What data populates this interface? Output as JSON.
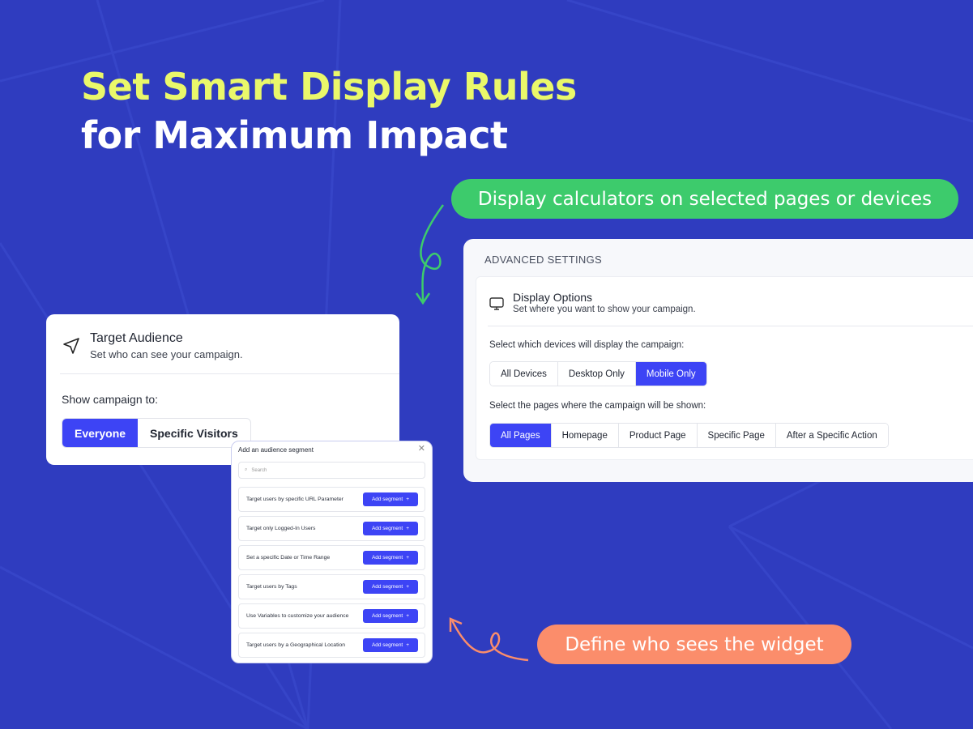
{
  "headline": {
    "line1": "Set Smart Display Rules",
    "line2": "for Maximum Impact"
  },
  "callouts": {
    "display": "Display calculators on selected pages or devices",
    "audience": "Define who sees the widget"
  },
  "advanced": {
    "header": "ADVANCED SETTINGS",
    "title": "Display Options",
    "subtitle": "Set where you want to show your campaign.",
    "devices_label": "Select which devices will display the campaign:",
    "devices": [
      "All Devices",
      "Desktop Only",
      "Mobile Only"
    ],
    "devices_selected": "Mobile Only",
    "pages_label": "Select the pages where the campaign will be shown:",
    "pages": [
      "All Pages",
      "Homepage",
      "Product Page",
      "Specific Page",
      "After a Specific Action"
    ],
    "pages_selected": "All Pages"
  },
  "target": {
    "title": "Target Audience",
    "subtitle": "Set who can see your campaign.",
    "show_label": "Show campaign to:",
    "options": [
      "Everyone",
      "Specific Visitors"
    ],
    "selected": "Everyone"
  },
  "modal": {
    "title": "Add an audience segment",
    "search_placeholder": "Search",
    "button_label": "Add segment",
    "segments": [
      "Target users by specific URL Parameter",
      "Target only Logged-In Users",
      "Set a specific Date or Time Range",
      "Target users by Tags",
      "Use Variables to customize your audience",
      "Target users by a Geographical Location"
    ]
  },
  "colors": {
    "background": "#2f3cbf",
    "accent": "#3d44f5",
    "headline": "#eaf86a",
    "green": "#3dcb6c",
    "orange": "#fb8d6b"
  }
}
